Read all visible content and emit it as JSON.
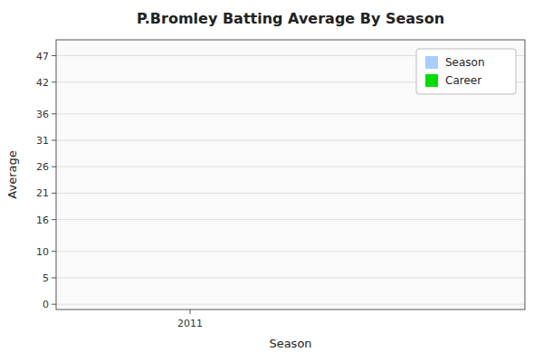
{
  "chart_data": {
    "type": "bar",
    "title": "P.Bromley Batting Average By Season",
    "xlabel": "Season",
    "ylabel": "Average",
    "x": [],
    "series": [
      {
        "name": "Season",
        "color": "#aaccff",
        "values": []
      },
      {
        "name": "Career",
        "color": "#00dd00",
        "values": []
      }
    ],
    "xlim": [
      2010.6,
      2012.0
    ],
    "xticks": [
      2011
    ],
    "ylim": [
      -1,
      50
    ],
    "yticks": [
      0,
      5,
      10,
      16,
      21,
      26,
      31,
      36,
      42,
      47
    ],
    "grid": true,
    "legend": "upper right"
  }
}
